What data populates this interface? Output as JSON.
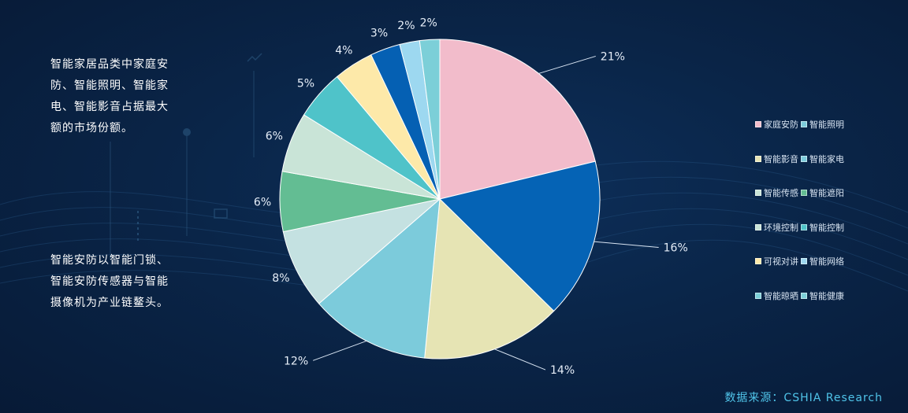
{
  "notes": {
    "text1": "智能家居品类中家庭安防、智能照明、智能家电、智能影音占据最大额的市场份额。",
    "text2": "智能安防以智能门锁、智能安防传感器与智能摄像机为产业链鳌头。"
  },
  "source": "数据来源：CSHIA Research",
  "legend_rows": [
    [
      "家庭安防",
      "智能照明"
    ],
    [
      "智能影音",
      "智能家电"
    ],
    [
      "智能传感",
      "智能遮阳"
    ],
    [
      "环境控制",
      "智能控制"
    ],
    [
      "可视对讲",
      "智能网络"
    ],
    [
      "智能晾晒",
      "智能健康"
    ]
  ],
  "chart_data": {
    "type": "pie",
    "labels": [
      "21%",
      "16%",
      "14%",
      "12%",
      "8%",
      "6%",
      "6%",
      "5%",
      "4%",
      "3%",
      "2%",
      "2%"
    ],
    "values": [
      21,
      16,
      14,
      12,
      8,
      6,
      6,
      5,
      4,
      3,
      2,
      2
    ],
    "colors": [
      "#f2bccb",
      "#0563b5",
      "#e6e4b4",
      "#7ccbdb",
      "#c4e1e1",
      "#63bd93",
      "#c9e4d7",
      "#4fc3c9",
      "#fde9a9",
      "#0560b3",
      "#9dd8f0",
      "#7ccfd8"
    ],
    "legend": [
      "家庭安防",
      "智能照明",
      "智能影音",
      "智能家电",
      "智能传感",
      "智能遮阳",
      "环境控制",
      "智能控制",
      "可视对讲",
      "智能网络",
      "智能晾晒",
      "智能健康"
    ],
    "legend_colors": [
      "#f2bccb",
      "#7ccbdb",
      "#e6e4b4",
      "#7ccbdb",
      "#c9e4d7",
      "#63bd93",
      "#c9e4d7",
      "#4fc3c9",
      "#fde9a9",
      "#9dd8f0",
      "#7ccfd8",
      "#7ccfd8"
    ],
    "legend_position": "right"
  }
}
